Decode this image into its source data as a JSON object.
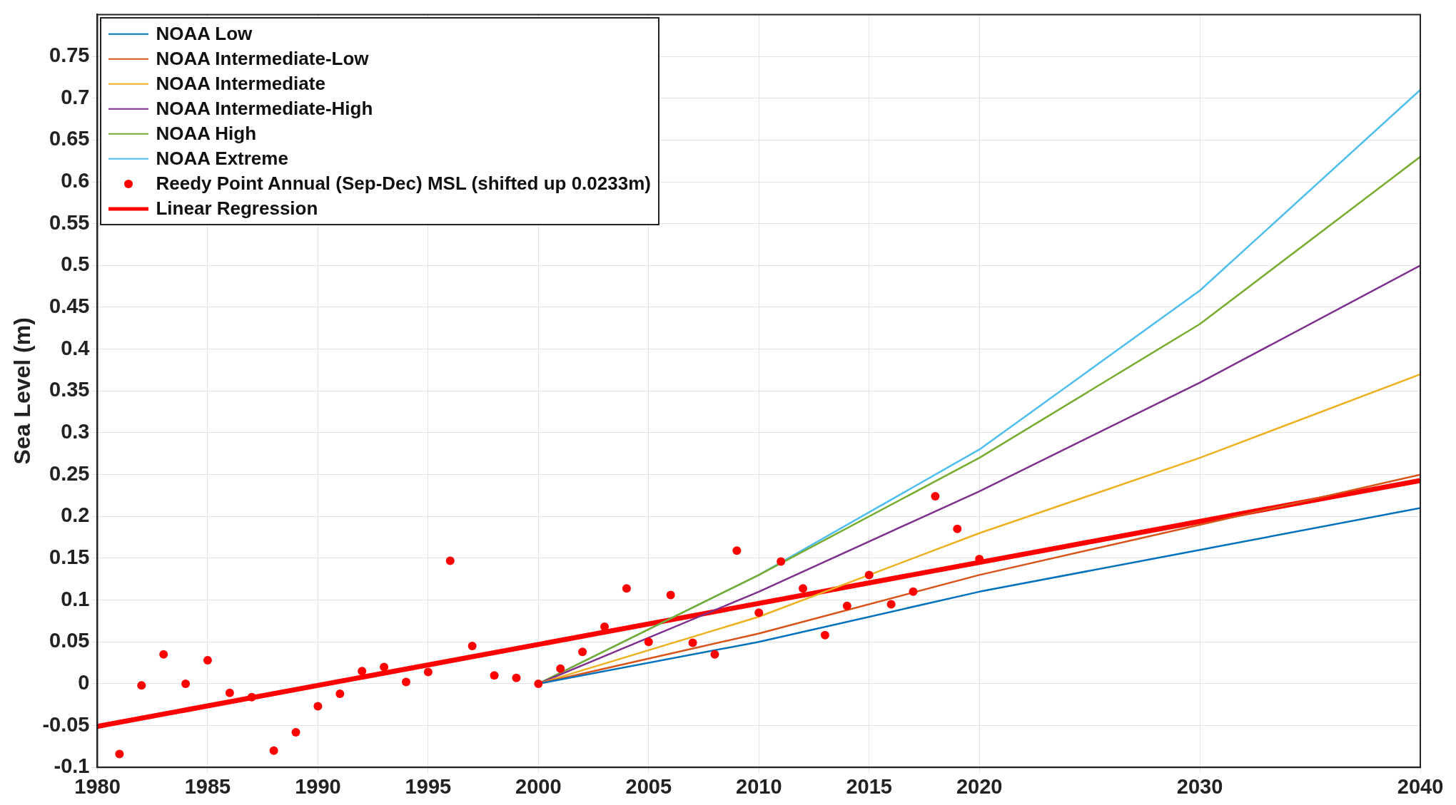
{
  "chart_data": {
    "type": "line",
    "ylabel": "Sea Level (m)",
    "xlim": [
      1980,
      2040
    ],
    "xticks": [
      1980,
      1985,
      1990,
      1995,
      2000,
      2005,
      2010,
      2015,
      2020,
      2030,
      2040
    ],
    "ylim": [
      -0.1,
      0.8
    ],
    "yticks": [
      -0.1,
      -0.05,
      0,
      0.05,
      0.1,
      0.15,
      0.2,
      0.25,
      0.3,
      0.35,
      0.4,
      0.45,
      0.5,
      0.55,
      0.6,
      0.65,
      0.7,
      0.75
    ],
    "grid": true,
    "legend": "top left",
    "marker": "none",
    "line_style": "solid",
    "series": [
      {
        "name": "NOAA Low",
        "color": "#0072bd",
        "x": [
          2000,
          2010,
          2020,
          2030,
          2040
        ],
        "values": [
          0,
          0.05,
          0.11,
          0.16,
          0.21
        ]
      },
      {
        "name": "NOAA Intermediate-Low",
        "color": "#d95319",
        "x": [
          2000,
          2010,
          2020,
          2030,
          2040
        ],
        "values": [
          0,
          0.06,
          0.13,
          0.19,
          0.25
        ]
      },
      {
        "name": "NOAA Intermediate",
        "color": "#edb120",
        "x": [
          2000,
          2010,
          2020,
          2030,
          2040
        ],
        "values": [
          0,
          0.08,
          0.18,
          0.27,
          0.37
        ]
      },
      {
        "name": "NOAA Intermediate-High",
        "color": "#7e2f8e",
        "x": [
          2000,
          2010,
          2020,
          2030,
          2040
        ],
        "values": [
          0,
          0.11,
          0.23,
          0.36,
          0.5
        ]
      },
      {
        "name": "NOAA High",
        "color": "#77ac30",
        "x": [
          2000,
          2010,
          2020,
          2030,
          2040
        ],
        "values": [
          0,
          0.13,
          0.27,
          0.43,
          0.63
        ]
      },
      {
        "name": "NOAA Extreme",
        "color": "#4dbeee",
        "x": [
          2000,
          2010,
          2020,
          2030,
          2040
        ],
        "values": [
          0,
          0.13,
          0.28,
          0.47,
          0.71
        ]
      },
      {
        "name": "Reedy Point Annual (Sep-Dec) MSL (shifted up 0.0233m)",
        "color": "#ff0000",
        "type": "scatter",
        "marker": "circle",
        "x": [
          1981,
          1982,
          1983,
          1984,
          1985,
          1986,
          1987,
          1988,
          1989,
          1990,
          1991,
          1992,
          1993,
          1994,
          1995,
          1996,
          1997,
          1998,
          1999,
          2000,
          2001,
          2002,
          2003,
          2004,
          2005,
          2006,
          2007,
          2008,
          2009,
          2010,
          2011,
          2012,
          2013,
          2014,
          2015,
          2016,
          2017,
          2018,
          2019,
          2020
        ],
        "values": [
          -0.084,
          -0.002,
          0.035,
          0,
          0.028,
          -0.011,
          -0.016,
          -0.08,
          -0.058,
          -0.027,
          -0.012,
          0.015,
          0.02,
          0.002,
          0.014,
          0.147,
          0.045,
          0.01,
          0.007,
          0,
          0.018,
          0.038,
          0.068,
          0.114,
          0.05,
          0.106,
          0.049,
          0.035,
          0.159,
          0.085,
          0.146,
          0.114,
          0.058,
          0.093,
          0.13,
          0.095,
          0.11,
          0.224,
          0.185,
          0.149
        ]
      },
      {
        "name": "Linear Regression",
        "color": "#ff0000",
        "x": [
          1980,
          2040
        ],
        "values": [
          -0.051,
          0.243
        ]
      }
    ]
  }
}
